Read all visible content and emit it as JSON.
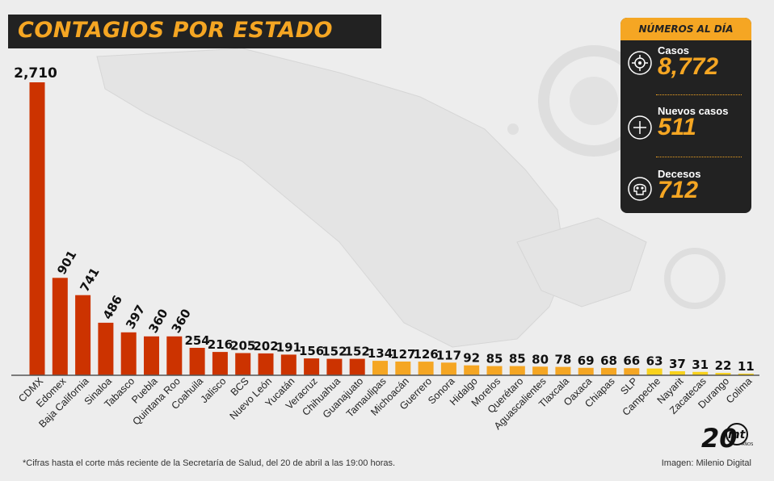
{
  "header": {
    "title": "CONTAGIOS POR ESTADO"
  },
  "chart_data": {
    "type": "bar",
    "title": "CONTAGIOS POR ESTADO",
    "categories": [
      "CDMX",
      "Edomex",
      "Baja California",
      "Sinaloa",
      "Tabasco",
      "Puebla",
      "Quintana Roo",
      "Coahuila",
      "Jalisco",
      "BCS",
      "Nuevo León",
      "Yucatán",
      "Veracruz",
      "Chihuahua",
      "Guanajuato",
      "Tamaulipas",
      "Michoacán",
      "Guerrero",
      "Sonora",
      "Hidalgo",
      "Morelos",
      "Querétaro",
      "Aguascalientes",
      "Tlaxcala",
      "Oaxaca",
      "Chiapas",
      "SLP",
      "Campeche",
      "Nayarit",
      "Zacatecas",
      "Durango",
      "Colima"
    ],
    "values": [
      2710,
      901,
      741,
      486,
      397,
      360,
      360,
      254,
      216,
      205,
      202,
      191,
      156,
      152,
      152,
      134,
      127,
      126,
      117,
      92,
      85,
      85,
      80,
      78,
      69,
      68,
      66,
      63,
      37,
      31,
      22,
      11
    ],
    "value_labels": [
      "2,710",
      "901",
      "741",
      "486",
      "397",
      "360",
      "360",
      "254",
      "216",
      "205",
      "202",
      "191",
      "156",
      "152",
      "152",
      "134",
      "127",
      "126",
      "117",
      "92",
      "85",
      "85",
      "80",
      "78",
      "69",
      "68",
      "66",
      "63",
      "37",
      "31",
      "22",
      "11"
    ],
    "colors": {
      "high": "#cc3300",
      "mid": "#f5a623",
      "low": "#f9d21c"
    },
    "color_groups": [
      "high",
      "high",
      "high",
      "high",
      "high",
      "high",
      "high",
      "high",
      "high",
      "high",
      "high",
      "high",
      "high",
      "high",
      "high",
      "mid",
      "mid",
      "mid",
      "mid",
      "mid",
      "mid",
      "mid",
      "mid",
      "mid",
      "mid",
      "mid",
      "mid",
      "low",
      "low",
      "low",
      "low",
      "low"
    ],
    "ylim": [
      0,
      2710
    ],
    "grid": false,
    "legend": "none"
  },
  "stats": {
    "header": "NÚMEROS AL DÍA",
    "items": [
      {
        "label": "Casos",
        "value": "8,772",
        "icon": "virus-icon"
      },
      {
        "label": "Nuevos casos",
        "value": "511",
        "icon": "plus-icon"
      },
      {
        "label": "Decesos",
        "value": "712",
        "icon": "skull-icon"
      }
    ]
  },
  "footer": {
    "note": "*Cifras hasta el corte más reciente de la Secretaría de Salud, del 20 de abril a las 19:00 horas.",
    "credit": "Imagen: Milenio Digital"
  },
  "logo": {
    "number": "20",
    "text": "mt",
    "small": "AÑOS"
  }
}
